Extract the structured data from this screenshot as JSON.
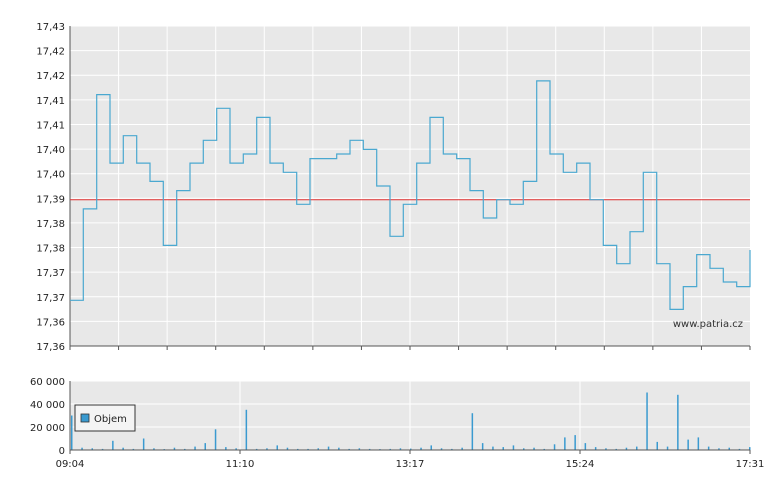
{
  "chart_data": [
    {
      "type": "line",
      "title": "",
      "watermark": "www.patria.cz",
      "y_ticks": [
        "17,36",
        "17,36",
        "17,37",
        "17,37",
        "17,38",
        "17,38",
        "17,39",
        "17,40",
        "17,40",
        "17,41",
        "17,41",
        "17,42",
        "17,42",
        "17,43"
      ],
      "ylim": [
        17.36,
        17.43
      ],
      "reference_line": {
        "value": 17.392,
        "color": "#e03030"
      },
      "line_color": "#4aa8d0",
      "x": [
        "09:04",
        "09:12",
        "09:20",
        "09:30",
        "09:40",
        "09:50",
        "10:00",
        "10:10",
        "10:20",
        "10:30",
        "10:40",
        "10:50",
        "11:00",
        "11:10",
        "11:20",
        "11:30",
        "11:40",
        "11:50",
        "12:00",
        "12:10",
        "12:20",
        "12:30",
        "12:40",
        "12:50",
        "13:00",
        "13:10",
        "13:17",
        "13:30",
        "13:40",
        "13:50",
        "14:00",
        "14:10",
        "14:20",
        "14:30",
        "14:40",
        "14:50",
        "15:00",
        "15:10",
        "15:24",
        "15:30",
        "15:40",
        "15:50",
        "16:00",
        "16:10",
        "16:20",
        "16:30",
        "16:40",
        "16:50",
        "17:00",
        "17:10",
        "17:20",
        "17:31"
      ],
      "values": [
        17.37,
        17.39,
        17.415,
        17.4,
        17.406,
        17.4,
        17.396,
        17.382,
        17.394,
        17.4,
        17.405,
        17.412,
        17.4,
        17.402,
        17.41,
        17.4,
        17.398,
        17.391,
        17.401,
        17.401,
        17.402,
        17.405,
        17.403,
        17.395,
        17.384,
        17.391,
        17.4,
        17.41,
        17.402,
        17.401,
        17.394,
        17.388,
        17.392,
        17.391,
        17.396,
        17.418,
        17.402,
        17.398,
        17.4,
        17.392,
        17.382,
        17.378,
        17.385,
        17.398,
        17.378,
        17.368,
        17.373,
        17.38,
        17.377,
        17.374,
        17.373,
        17.381
      ],
      "grid": true
    },
    {
      "type": "bar",
      "legend": [
        "Objem"
      ],
      "series": [
        {
          "name": "Objem",
          "color": "#3a9ad0"
        }
      ],
      "y_ticks": [
        "0",
        "20 000",
        "40 000",
        "60 000"
      ],
      "ylim": [
        0,
        60000
      ],
      "x_ticks": [
        "09:04",
        "11:10",
        "13:17",
        "15:24",
        "17:31"
      ],
      "values": [
        30000,
        2000,
        1500,
        1000,
        8000,
        2000,
        1000,
        10000,
        1500,
        800,
        2000,
        1000,
        3000,
        6000,
        18000,
        2500,
        1500,
        35000,
        1000,
        1500,
        4000,
        2000,
        1000,
        1000,
        1500,
        3000,
        2000,
        1000,
        1500,
        1000,
        800,
        1000,
        1500,
        1200,
        2000,
        4000,
        1500,
        1000,
        2000,
        32000,
        6000,
        3000,
        2500,
        4000,
        1500,
        2000,
        1000,
        5000,
        11000,
        13000,
        6000,
        2500,
        1500,
        1000,
        2000,
        3000,
        50000,
        7000,
        3000,
        48000,
        9000,
        11000,
        3000,
        1500,
        2000,
        1000,
        2500
      ],
      "grid": true
    }
  ]
}
